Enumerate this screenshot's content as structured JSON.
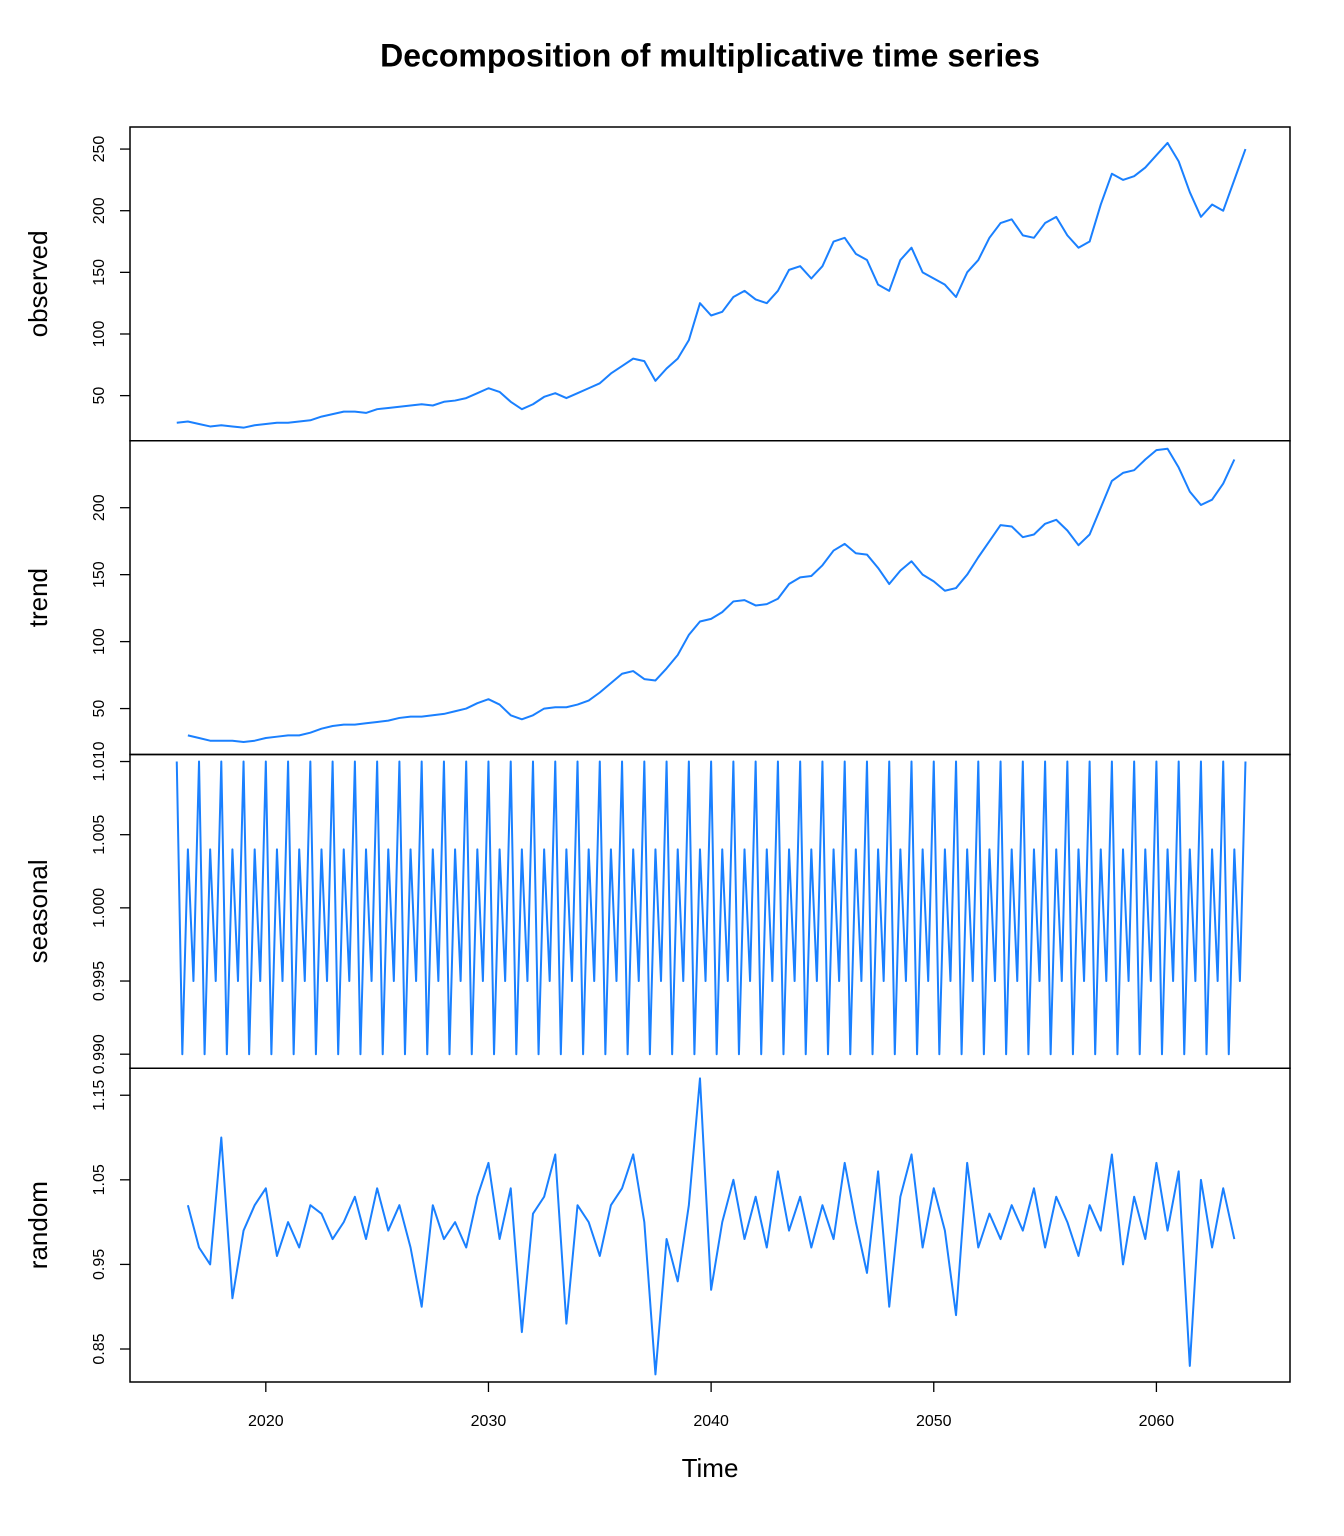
{
  "title": "Decomposition of multiplicative time series",
  "x_label": "Time",
  "chart_data": [
    {
      "type": "line",
      "y_label": "observed",
      "color": "#1a80ff",
      "xlim": [
        2013.9,
        2066.0
      ],
      "ylim": [
        13.4,
        267.9
      ],
      "yticks": [
        50,
        100,
        150,
        200,
        250
      ],
      "x": [
        2016,
        2016.5,
        2017,
        2017.5,
        2018,
        2018.5,
        2019,
        2019.5,
        2020,
        2020.5,
        2021,
        2021.5,
        2022,
        2022.5,
        2023,
        2023.5,
        2024,
        2024.5,
        2025,
        2025.5,
        2026,
        2026.5,
        2027,
        2027.5,
        2028,
        2028.5,
        2029,
        2029.5,
        2030,
        2030.5,
        2031,
        2031.5,
        2032,
        2032.5,
        2033,
        2033.5,
        2034,
        2034.5,
        2035,
        2035.5,
        2036,
        2036.5,
        2037,
        2037.5,
        2038,
        2038.5,
        2039,
        2039.5,
        2040,
        2040.5,
        2041,
        2041.5,
        2042,
        2042.5,
        2043,
        2043.5,
        2044,
        2044.5,
        2045,
        2045.5,
        2046,
        2046.5,
        2047,
        2047.5,
        2048,
        2048.5,
        2049,
        2049.5,
        2050,
        2050.5,
        2051,
        2051.5,
        2052,
        2052.5,
        2053,
        2053.5,
        2054,
        2054.5,
        2055,
        2055.5,
        2056,
        2056.5,
        2057,
        2057.5,
        2058,
        2058.5,
        2059,
        2059.5,
        2060,
        2060.5,
        2061,
        2061.5,
        2062,
        2062.5,
        2063,
        2063.5,
        2064
      ],
      "values": [
        28,
        29,
        27,
        25,
        26,
        25,
        24,
        26,
        27,
        28,
        28,
        29,
        30,
        33,
        35,
        37,
        37,
        36,
        39,
        40,
        41,
        42,
        43,
        42,
        45,
        46,
        48,
        52,
        56,
        53,
        45,
        39,
        43,
        49,
        52,
        48,
        52,
        56,
        60,
        68,
        74,
        80,
        78,
        62,
        72,
        80,
        95,
        125,
        115,
        118,
        130,
        135,
        128,
        125,
        135,
        152,
        155,
        145,
        155,
        175,
        178,
        165,
        160,
        140,
        135,
        160,
        170,
        150,
        145,
        140,
        130,
        150,
        160,
        178,
        190,
        193,
        180,
        178,
        190,
        195,
        180,
        170,
        175,
        205,
        230,
        225,
        228,
        235,
        245,
        255,
        240,
        215,
        195,
        205,
        200,
        225,
        250
      ]
    },
    {
      "type": "line",
      "y_label": "trend",
      "color": "#1a80ff",
      "xlim": [
        2013.9,
        2066.0
      ],
      "ylim": [
        15.7,
        250
      ],
      "yticks": [
        50,
        100,
        150,
        200
      ],
      "x": [
        2016.5,
        2017,
        2017.5,
        2018,
        2018.5,
        2019,
        2019.5,
        2020,
        2020.5,
        2021,
        2021.5,
        2022,
        2022.5,
        2023,
        2023.5,
        2024,
        2024.5,
        2025,
        2025.5,
        2026,
        2026.5,
        2027,
        2027.5,
        2028,
        2028.5,
        2029,
        2029.5,
        2030,
        2030.5,
        2031,
        2031.5,
        2032,
        2032.5,
        2033,
        2033.5,
        2034,
        2034.5,
        2035,
        2035.5,
        2036,
        2036.5,
        2037,
        2037.5,
        2038,
        2038.5,
        2039,
        2039.5,
        2040,
        2040.5,
        2041,
        2041.5,
        2042,
        2042.5,
        2043,
        2043.5,
        2044,
        2044.5,
        2045,
        2045.5,
        2046,
        2046.5,
        2047,
        2047.5,
        2048,
        2048.5,
        2049,
        2049.5,
        2050,
        2050.5,
        2051,
        2051.5,
        2052,
        2052.5,
        2053,
        2053.5,
        2054,
        2054.5,
        2055,
        2055.5,
        2056,
        2056.5,
        2057,
        2057.5,
        2058,
        2058.5,
        2059,
        2059.5,
        2060,
        2060.5,
        2061,
        2061.5,
        2062,
        2062.5,
        2063,
        2063.5
      ],
      "values": [
        30,
        28,
        26,
        26,
        26,
        25,
        26,
        28,
        29,
        30,
        30,
        32,
        35,
        37,
        38,
        38,
        39,
        40,
        41,
        43,
        44,
        44,
        45,
        46,
        48,
        50,
        54,
        57,
        53,
        45,
        42,
        45,
        50,
        51,
        51,
        53,
        56,
        62,
        69,
        76,
        78,
        72,
        71,
        80,
        90,
        105,
        115,
        117,
        122,
        130,
        131,
        127,
        128,
        132,
        143,
        148,
        149,
        157,
        168,
        173,
        166,
        165,
        155,
        143,
        153,
        160,
        150,
        145,
        138,
        140,
        150,
        163,
        175,
        187,
        186,
        178,
        180,
        188,
        191,
        183,
        172,
        180,
        200,
        220,
        226,
        228,
        236,
        243,
        244,
        230,
        212,
        202,
        206,
        218,
        236
      ]
    },
    {
      "type": "line",
      "y_label": "seasonal",
      "color": "#1a80ff",
      "xlim": [
        2013.9,
        2066.0
      ],
      "ylim": [
        0.98904,
        1.01048
      ],
      "yticks": [
        {
          "value": 0.99,
          "label": "0.990"
        },
        0.995,
        {
          "value": 1,
          "label": "1.000"
        },
        1.005,
        {
          "value": 1.01,
          "label": "1.010"
        }
      ],
      "x": [
        2016,
        2016.25,
        2016.5,
        2016.75,
        2017,
        2017.25,
        2017.5,
        2017.75,
        2018,
        2018.25,
        2018.5,
        2018.75,
        2019,
        2019.25,
        2019.5,
        2019.75,
        2020,
        2020.25,
        2020.5,
        2020.75,
        2021,
        2021.25,
        2021.5,
        2021.75,
        2022,
        2022.25,
        2022.5,
        2022.75,
        2023,
        2023.25,
        2023.5,
        2023.75,
        2024,
        2024.25,
        2024.5,
        2024.75,
        2025,
        2025.25,
        2025.5,
        2025.75,
        2026,
        2026.25,
        2026.5,
        2026.75,
        2027,
        2027.25,
        2027.5,
        2027.75,
        2028,
        2028.25,
        2028.5,
        2028.75,
        2029,
        2029.25,
        2029.5,
        2029.75,
        2030,
        2030.25,
        2030.5,
        2030.75,
        2031,
        2031.25,
        2031.5,
        2031.75,
        2032,
        2032.25,
        2032.5,
        2032.75,
        2033,
        2033.25,
        2033.5,
        2033.75,
        2034,
        2034.25,
        2034.5,
        2034.75,
        2035,
        2035.25,
        2035.5,
        2035.75,
        2036,
        2036.25,
        2036.5,
        2036.75,
        2037,
        2037.25,
        2037.5,
        2037.75,
        2038,
        2038.25,
        2038.5,
        2038.75,
        2039,
        2039.25,
        2039.5,
        2039.75,
        2040,
        2040.25,
        2040.5,
        2040.75,
        2041,
        2041.25,
        2041.5,
        2041.75,
        2042,
        2042.25,
        2042.5,
        2042.75,
        2043,
        2043.25,
        2043.5,
        2043.75,
        2044,
        2044.25,
        2044.5,
        2044.75,
        2045,
        2045.25,
        2045.5,
        2045.75,
        2046,
        2046.25,
        2046.5,
        2046.75,
        2047,
        2047.25,
        2047.5,
        2047.75,
        2048,
        2048.25,
        2048.5,
        2048.75,
        2049,
        2049.25,
        2049.5,
        2049.75,
        2050,
        2050.25,
        2050.5,
        2050.75,
        2051,
        2051.25,
        2051.5,
        2051.75,
        2052,
        2052.25,
        2052.5,
        2052.75,
        2053,
        2053.25,
        2053.5,
        2053.75,
        2054,
        2054.25,
        2054.5,
        2054.75,
        2055,
        2055.25,
        2055.5,
        2055.75,
        2056,
        2056.25,
        2056.5,
        2056.75,
        2057,
        2057.25,
        2057.5,
        2057.75,
        2058,
        2058.25,
        2058.5,
        2058.75,
        2059,
        2059.25,
        2059.5,
        2059.75,
        2060,
        2060.25,
        2060.5,
        2060.75,
        2061,
        2061.25,
        2061.5,
        2061.75,
        2062,
        2062.25,
        2062.5,
        2062.75,
        2063,
        2063.25,
        2063.5,
        2063.75,
        2064
      ],
      "values": [
        1.01,
        0.99,
        1.004,
        0.995,
        1.01,
        0.99,
        1.004,
        0.995,
        1.01,
        0.99,
        1.004,
        0.995,
        1.01,
        0.99,
        1.004,
        0.995,
        1.01,
        0.99,
        1.004,
        0.995,
        1.01,
        0.99,
        1.004,
        0.995,
        1.01,
        0.99,
        1.004,
        0.995,
        1.01,
        0.99,
        1.004,
        0.995,
        1.01,
        0.99,
        1.004,
        0.995,
        1.01,
        0.99,
        1.004,
        0.995,
        1.01,
        0.99,
        1.004,
        0.995,
        1.01,
        0.99,
        1.004,
        0.995,
        1.01,
        0.99,
        1.004,
        0.995,
        1.01,
        0.99,
        1.004,
        0.995,
        1.01,
        0.99,
        1.004,
        0.995,
        1.01,
        0.99,
        1.004,
        0.995,
        1.01,
        0.99,
        1.004,
        0.995,
        1.01,
        0.99,
        1.004,
        0.995,
        1.01,
        0.99,
        1.004,
        0.995,
        1.01,
        0.99,
        1.004,
        0.995,
        1.01,
        0.99,
        1.004,
        0.995,
        1.01,
        0.99,
        1.004,
        0.995,
        1.01,
        0.99,
        1.004,
        0.995,
        1.01,
        0.99,
        1.004,
        0.995,
        1.01,
        0.99,
        1.004,
        0.995,
        1.01,
        0.99,
        1.004,
        0.995,
        1.01,
        0.99,
        1.004,
        0.995,
        1.01,
        0.99,
        1.004,
        0.995,
        1.01,
        0.99,
        1.004,
        0.995,
        1.01,
        0.99,
        1.004,
        0.995,
        1.01,
        0.99,
        1.004,
        0.995,
        1.01,
        0.99,
        1.004,
        0.995,
        1.01,
        0.99,
        1.004,
        0.995,
        1.01,
        0.99,
        1.004,
        0.995,
        1.01,
        0.99,
        1.004,
        0.995,
        1.01,
        0.99,
        1.004,
        0.995,
        1.01,
        0.99,
        1.004,
        0.995,
        1.01,
        0.99,
        1.004,
        0.995,
        1.01,
        0.99,
        1.004,
        0.995,
        1.01,
        0.99,
        1.004,
        0.995,
        1.01,
        0.99,
        1.004,
        0.995,
        1.01,
        0.99,
        1.004,
        0.995,
        1.01,
        0.99,
        1.004,
        0.995,
        1.01,
        0.99,
        1.004,
        0.995,
        1.01,
        0.99,
        1.004,
        0.995,
        1.01,
        0.99,
        1.004,
        0.995,
        1.01,
        0.99,
        1.004,
        0.995,
        1.01,
        0.99,
        1.004,
        0.995,
        1.01
      ]
    },
    {
      "type": "line",
      "y_label": "random",
      "color": "#1a80ff",
      "xlim": [
        2013.9,
        2066.0
      ],
      "ylim": [
        0.811,
        1.1819
      ],
      "yticks": [
        0.85,
        0.95,
        1.05,
        1.15
      ],
      "xticks": [
        2020,
        2030,
        2040,
        2050,
        2060
      ],
      "x": [
        2016.5,
        2017,
        2017.5,
        2018,
        2018.5,
        2019,
        2019.5,
        2020,
        2020.5,
        2021,
        2021.5,
        2022,
        2022.5,
        2023,
        2023.5,
        2024,
        2024.5,
        2025,
        2025.5,
        2026,
        2026.5,
        2027,
        2027.5,
        2028,
        2028.5,
        2029,
        2029.5,
        2030,
        2030.5,
        2031,
        2031.5,
        2032,
        2032.5,
        2033,
        2033.5,
        2034,
        2034.5,
        2035,
        2035.5,
        2036,
        2036.5,
        2037,
        2037.5,
        2038,
        2038.5,
        2039,
        2039.5,
        2040,
        2040.5,
        2041,
        2041.5,
        2042,
        2042.5,
        2043,
        2043.5,
        2044,
        2044.5,
        2045,
        2045.5,
        2046,
        2046.5,
        2047,
        2047.5,
        2048,
        2048.5,
        2049,
        2049.5,
        2050,
        2050.5,
        2051,
        2051.5,
        2052,
        2052.5,
        2053,
        2053.5,
        2054,
        2054.5,
        2055,
        2055.5,
        2056,
        2056.5,
        2057,
        2057.5,
        2058,
        2058.5,
        2059,
        2059.5,
        2060,
        2060.5,
        2061,
        2061.5,
        2062,
        2062.5,
        2063,
        2063.5
      ],
      "values": [
        1.02,
        0.97,
        0.95,
        1.1,
        0.91,
        0.99,
        1.02,
        1.04,
        0.96,
        1.0,
        0.97,
        1.02,
        1.01,
        0.98,
        1.0,
        1.03,
        0.98,
        1.04,
        0.99,
        1.02,
        0.97,
        0.9,
        1.02,
        0.98,
        1.0,
        0.97,
        1.03,
        1.07,
        0.98,
        1.04,
        0.87,
        1.01,
        1.03,
        1.08,
        0.88,
        1.02,
        1.0,
        0.96,
        1.02,
        1.04,
        1.08,
        1.0,
        0.82,
        0.98,
        0.93,
        1.02,
        1.17,
        0.92,
        1.0,
        1.05,
        0.98,
        1.03,
        0.97,
        1.06,
        0.99,
        1.03,
        0.97,
        1.02,
        0.98,
        1.07,
        1.0,
        0.94,
        1.06,
        0.9,
        1.03,
        1.08,
        0.97,
        1.04,
        0.99,
        0.89,
        1.07,
        0.97,
        1.01,
        0.98,
        1.02,
        0.99,
        1.04,
        0.97,
        1.03,
        1.0,
        0.96,
        1.02,
        0.99,
        1.08,
        0.95,
        1.03,
        0.98,
        1.07,
        0.99,
        1.06,
        0.83,
        1.05,
        0.97,
        1.04,
        0.98
      ]
    }
  ]
}
